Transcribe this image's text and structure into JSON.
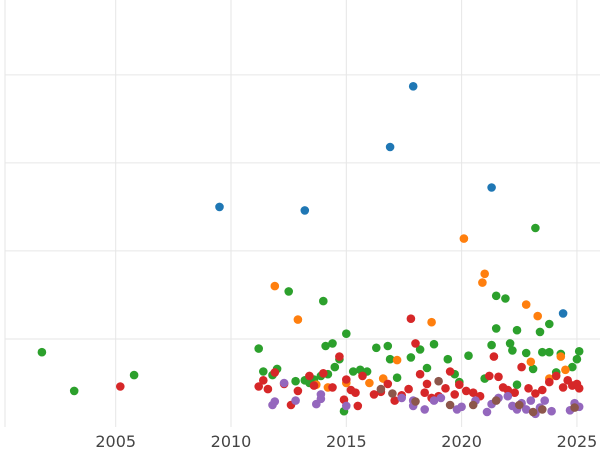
{
  "chart_data": {
    "type": "scatter",
    "title": "",
    "xlabel": "",
    "ylabel": "",
    "xlim": [
      2000.2,
      2026.0
    ],
    "ylim": [
      0.0,
      4.85
    ],
    "grid": true,
    "legend": "none",
    "x_ticks": [
      2005,
      2010,
      2015,
      2020,
      2025
    ],
    "x_tick_labels": [
      "2005",
      "2010",
      "2015",
      "2020",
      "2025"
    ],
    "y_grid": [
      1.0,
      2.0,
      3.0,
      4.0
    ],
    "series": [
      {
        "color": "#1f77b4",
        "points": [
          [
            2009.5,
            2.5
          ],
          [
            2013.2,
            2.46
          ],
          [
            2016.9,
            3.18
          ],
          [
            2017.9,
            3.87
          ],
          [
            2021.3,
            2.72
          ],
          [
            2024.4,
            1.29
          ]
        ]
      },
      {
        "color": "#2ca02c",
        "points": [
          [
            2001.8,
            0.85
          ],
          [
            2003.2,
            0.41
          ],
          [
            2005.8,
            0.59
          ],
          [
            2011.2,
            0.89
          ],
          [
            2011.4,
            0.63
          ],
          [
            2011.8,
            0.59
          ],
          [
            2012.0,
            0.66
          ],
          [
            2012.5,
            1.54
          ],
          [
            2012.8,
            0.52
          ],
          [
            2013.2,
            0.53
          ],
          [
            2013.4,
            0.5
          ],
          [
            2013.6,
            0.54
          ],
          [
            2013.9,
            0.58
          ],
          [
            2014.0,
            1.43
          ],
          [
            2014.1,
            0.92
          ],
          [
            2014.2,
            0.6
          ],
          [
            2014.4,
            0.95
          ],
          [
            2014.5,
            0.68
          ],
          [
            2014.7,
            0.77
          ],
          [
            2014.9,
            0.18
          ],
          [
            2015.0,
            1.06
          ],
          [
            2015.3,
            0.63
          ],
          [
            2015.6,
            0.65
          ],
          [
            2015.9,
            0.63
          ],
          [
            2016.3,
            0.9
          ],
          [
            2016.8,
            0.92
          ],
          [
            2016.9,
            0.77
          ],
          [
            2017.2,
            0.56
          ],
          [
            2017.8,
            0.79
          ],
          [
            2018.2,
            0.88
          ],
          [
            2018.5,
            0.67
          ],
          [
            2018.8,
            0.94
          ],
          [
            2019.4,
            0.77
          ],
          [
            2019.7,
            0.6
          ],
          [
            2019.9,
            0.51
          ],
          [
            2020.3,
            0.81
          ],
          [
            2021.0,
            0.55
          ],
          [
            2021.3,
            0.93
          ],
          [
            2021.5,
            1.49
          ],
          [
            2021.5,
            1.12
          ],
          [
            2021.9,
            1.46
          ],
          [
            2022.1,
            0.95
          ],
          [
            2022.2,
            0.87
          ],
          [
            2022.4,
            1.1
          ],
          [
            2022.4,
            0.48
          ],
          [
            2022.8,
            0.84
          ],
          [
            2023.1,
            0.66
          ],
          [
            2023.2,
            2.26
          ],
          [
            2023.4,
            1.08
          ],
          [
            2023.5,
            0.85
          ],
          [
            2023.8,
            1.17
          ],
          [
            2023.8,
            0.85
          ],
          [
            2024.1,
            0.62
          ],
          [
            2024.3,
            0.83
          ],
          [
            2024.8,
            0.68
          ],
          [
            2025.0,
            0.77
          ],
          [
            2025.1,
            0.86
          ]
        ]
      },
      {
        "color": "#ff7f0e",
        "points": [
          [
            2011.9,
            1.6
          ],
          [
            2012.9,
            1.22
          ],
          [
            2013.7,
            0.48
          ],
          [
            2014.2,
            0.45
          ],
          [
            2015.0,
            0.5
          ],
          [
            2016.0,
            0.5
          ],
          [
            2016.6,
            0.55
          ],
          [
            2017.2,
            0.76
          ],
          [
            2018.7,
            1.19
          ],
          [
            2020.1,
            2.14
          ],
          [
            2020.9,
            1.64
          ],
          [
            2021.0,
            1.74
          ],
          [
            2022.8,
            1.39
          ],
          [
            2023.0,
            0.74
          ],
          [
            2023.3,
            1.26
          ],
          [
            2023.8,
            0.55
          ],
          [
            2024.3,
            0.8
          ],
          [
            2024.5,
            0.65
          ]
        ]
      },
      {
        "color": "#d62728",
        "points": [
          [
            2005.2,
            0.46
          ],
          [
            2011.2,
            0.46
          ],
          [
            2011.4,
            0.53
          ],
          [
            2011.6,
            0.43
          ],
          [
            2011.9,
            0.62
          ],
          [
            2012.3,
            0.49
          ],
          [
            2012.6,
            0.25
          ],
          [
            2012.9,
            0.41
          ],
          [
            2013.4,
            0.58
          ],
          [
            2013.6,
            0.47
          ],
          [
            2014.0,
            0.61
          ],
          [
            2014.4,
            0.45
          ],
          [
            2014.7,
            0.8
          ],
          [
            2014.9,
            0.31
          ],
          [
            2015.0,
            0.54
          ],
          [
            2015.2,
            0.42
          ],
          [
            2015.4,
            0.39
          ],
          [
            2015.5,
            0.24
          ],
          [
            2015.7,
            0.58
          ],
          [
            2016.2,
            0.37
          ],
          [
            2016.5,
            0.4
          ],
          [
            2016.8,
            0.49
          ],
          [
            2017.1,
            0.3
          ],
          [
            2017.4,
            0.36
          ],
          [
            2017.7,
            0.43
          ],
          [
            2017.8,
            1.23
          ],
          [
            2018.0,
            0.95
          ],
          [
            2018.2,
            0.6
          ],
          [
            2018.4,
            0.39
          ],
          [
            2018.5,
            0.49
          ],
          [
            2018.7,
            0.33
          ],
          [
            2019.0,
            0.35
          ],
          [
            2019.3,
            0.44
          ],
          [
            2019.5,
            0.63
          ],
          [
            2019.7,
            0.37
          ],
          [
            2019.9,
            0.48
          ],
          [
            2020.2,
            0.41
          ],
          [
            2020.5,
            0.39
          ],
          [
            2020.8,
            0.35
          ],
          [
            2021.2,
            0.58
          ],
          [
            2021.4,
            0.8
          ],
          [
            2021.6,
            0.57
          ],
          [
            2021.8,
            0.45
          ],
          [
            2022.0,
            0.42
          ],
          [
            2022.3,
            0.39
          ],
          [
            2022.6,
            0.68
          ],
          [
            2022.9,
            0.44
          ],
          [
            2023.2,
            0.38
          ],
          [
            2023.5,
            0.42
          ],
          [
            2023.8,
            0.51
          ],
          [
            2024.1,
            0.58
          ],
          [
            2024.4,
            0.45
          ],
          [
            2024.6,
            0.53
          ],
          [
            2024.8,
            0.47
          ],
          [
            2025.0,
            0.49
          ],
          [
            2025.1,
            0.44
          ]
        ]
      },
      {
        "color": "#9467bd",
        "points": [
          [
            2011.8,
            0.25
          ],
          [
            2011.9,
            0.29
          ],
          [
            2012.3,
            0.5
          ],
          [
            2012.8,
            0.3
          ],
          [
            2013.7,
            0.26
          ],
          [
            2013.9,
            0.32
          ],
          [
            2013.9,
            0.37
          ],
          [
            2015.0,
            0.24
          ],
          [
            2017.4,
            0.33
          ],
          [
            2017.9,
            0.24
          ],
          [
            2017.9,
            0.3
          ],
          [
            2018.4,
            0.2
          ],
          [
            2018.8,
            0.3
          ],
          [
            2019.1,
            0.33
          ],
          [
            2019.8,
            0.2
          ],
          [
            2020.0,
            0.23
          ],
          [
            2020.6,
            0.3
          ],
          [
            2021.1,
            0.17
          ],
          [
            2021.3,
            0.26
          ],
          [
            2021.6,
            0.33
          ],
          [
            2022.0,
            0.35
          ],
          [
            2022.2,
            0.24
          ],
          [
            2022.4,
            0.2
          ],
          [
            2022.6,
            0.27
          ],
          [
            2022.8,
            0.2
          ],
          [
            2023.0,
            0.3
          ],
          [
            2023.2,
            0.15
          ],
          [
            2023.4,
            0.22
          ],
          [
            2023.6,
            0.3
          ],
          [
            2023.9,
            0.18
          ],
          [
            2024.7,
            0.19
          ],
          [
            2024.9,
            0.27
          ],
          [
            2025.1,
            0.23
          ]
        ]
      },
      {
        "color": "#8c564b",
        "points": [
          [
            2016.5,
            0.43
          ],
          [
            2017.0,
            0.38
          ],
          [
            2018.0,
            0.29
          ],
          [
            2019.0,
            0.52
          ],
          [
            2019.5,
            0.25
          ],
          [
            2020.5,
            0.25
          ],
          [
            2021.5,
            0.3
          ],
          [
            2022.5,
            0.25
          ],
          [
            2023.1,
            0.17
          ],
          [
            2023.5,
            0.2
          ],
          [
            2024.9,
            0.22
          ]
        ]
      }
    ]
  }
}
